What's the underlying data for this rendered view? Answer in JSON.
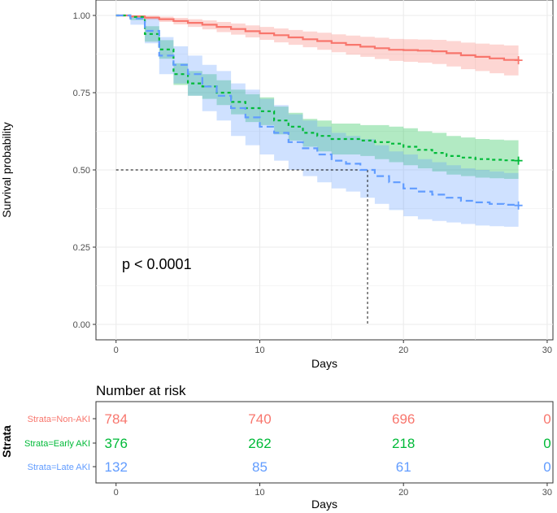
{
  "colors": {
    "non_aki": "#F8766D",
    "early_aki": "#00BA38",
    "late_aki": "#619CFF",
    "grid": "#EBEBEB",
    "axis_text": "#4D4D4D",
    "text": "#000000"
  },
  "chart_data": [
    {
      "type": "line",
      "subtype": "kaplan-meier survival curve",
      "xlabel": "Days",
      "ylabel": "Survival probability",
      "xlim": [
        -1.4,
        30.4
      ],
      "ylim": [
        -0.05,
        1.05
      ],
      "x_ticks": [
        0,
        10,
        20,
        30
      ],
      "x_tick_labels": [
        "0",
        "10",
        "20",
        "30"
      ],
      "y_ticks": [
        0.0,
        0.25,
        0.5,
        0.75,
        1.0
      ],
      "y_tick_labels": [
        "0.00",
        "0.25",
        "0.50",
        "0.75",
        "1.00"
      ],
      "grid": true,
      "annotation": "p < 0.0001",
      "median_line": {
        "x": 17.5,
        "y": 0.5
      },
      "series": [
        {
          "name": "Strata=Non-AKI",
          "color_key": "non_aki",
          "dash": "solid",
          "steps": [
            [
              0,
              1.0
            ],
            [
              1,
              0.997
            ],
            [
              2,
              0.993
            ],
            [
              3,
              0.988
            ],
            [
              4,
              0.982
            ],
            [
              5,
              0.976
            ],
            [
              6,
              0.97
            ],
            [
              7,
              0.963
            ],
            [
              8,
              0.956
            ],
            [
              9,
              0.949
            ],
            [
              10,
              0.942
            ],
            [
              11,
              0.936
            ],
            [
              12,
              0.929
            ],
            [
              13,
              0.923
            ],
            [
              14,
              0.917
            ],
            [
              15,
              0.911
            ],
            [
              16,
              0.905
            ],
            [
              17,
              0.899
            ],
            [
              18,
              0.894
            ],
            [
              19,
              0.889
            ],
            [
              20,
              0.888
            ],
            [
              21,
              0.886
            ],
            [
              22,
              0.884
            ],
            [
              23,
              0.878
            ],
            [
              24,
              0.871
            ],
            [
              25,
              0.866
            ],
            [
              26,
              0.861
            ],
            [
              27,
              0.856
            ],
            [
              28,
              0.855
            ]
          ],
          "ci_lower": [
            [
              0,
              1.0
            ],
            [
              1,
              0.993
            ],
            [
              2,
              0.986
            ],
            [
              3,
              0.979
            ],
            [
              4,
              0.971
            ],
            [
              5,
              0.963
            ],
            [
              6,
              0.955
            ],
            [
              7,
              0.946
            ],
            [
              8,
              0.938
            ],
            [
              9,
              0.929
            ],
            [
              10,
              0.921
            ],
            [
              11,
              0.913
            ],
            [
              12,
              0.905
            ],
            [
              13,
              0.897
            ],
            [
              14,
              0.889
            ],
            [
              15,
              0.881
            ],
            [
              16,
              0.873
            ],
            [
              17,
              0.866
            ],
            [
              18,
              0.859
            ],
            [
              19,
              0.853
            ],
            [
              20,
              0.85
            ],
            [
              21,
              0.847
            ],
            [
              22,
              0.843
            ],
            [
              23,
              0.835
            ],
            [
              24,
              0.826
            ],
            [
              25,
              0.82
            ],
            [
              26,
              0.813
            ],
            [
              27,
              0.806
            ],
            [
              28,
              0.804
            ]
          ],
          "ci_upper": [
            [
              0,
              1.0
            ],
            [
              1,
              1.0
            ],
            [
              2,
              0.999
            ],
            [
              3,
              0.996
            ],
            [
              4,
              0.992
            ],
            [
              5,
              0.988
            ],
            [
              6,
              0.984
            ],
            [
              7,
              0.979
            ],
            [
              8,
              0.974
            ],
            [
              9,
              0.968
            ],
            [
              10,
              0.963
            ],
            [
              11,
              0.958
            ],
            [
              12,
              0.953
            ],
            [
              13,
              0.948
            ],
            [
              14,
              0.944
            ],
            [
              15,
              0.939
            ],
            [
              16,
              0.935
            ],
            [
              17,
              0.931
            ],
            [
              18,
              0.928
            ],
            [
              19,
              0.924
            ],
            [
              20,
              0.923
            ],
            [
              21,
              0.922
            ],
            [
              22,
              0.921
            ],
            [
              23,
              0.917
            ],
            [
              24,
              0.912
            ],
            [
              25,
              0.909
            ],
            [
              26,
              0.906
            ],
            [
              27,
              0.903
            ],
            [
              28,
              0.902
            ]
          ],
          "end": [
            28,
            0.855
          ]
        },
        {
          "name": "Strata=Early AKI",
          "color_key": "early_aki",
          "dash": "4,4",
          "steps": [
            [
              0,
              1.0
            ],
            [
              1,
              0.995
            ],
            [
              2,
              0.94
            ],
            [
              3,
              0.89
            ],
            [
              4,
              0.81
            ],
            [
              5,
              0.78
            ],
            [
              6,
              0.77
            ],
            [
              7,
              0.75
            ],
            [
              8,
              0.72
            ],
            [
              9,
              0.7
            ],
            [
              10,
              0.69
            ],
            [
              11,
              0.66
            ],
            [
              12,
              0.64
            ],
            [
              13,
              0.62
            ],
            [
              14,
              0.61
            ],
            [
              15,
              0.6
            ],
            [
              16,
              0.6
            ],
            [
              17,
              0.595
            ],
            [
              18,
              0.59
            ],
            [
              19,
              0.585
            ],
            [
              20,
              0.575
            ],
            [
              21,
              0.565
            ],
            [
              22,
              0.555
            ],
            [
              23,
              0.545
            ],
            [
              24,
              0.54
            ],
            [
              25,
              0.535
            ],
            [
              26,
              0.533
            ],
            [
              27,
              0.531
            ],
            [
              28,
              0.53
            ]
          ],
          "ci_lower": [
            [
              0,
              1.0
            ],
            [
              1,
              0.985
            ],
            [
              2,
              0.915
            ],
            [
              3,
              0.86
            ],
            [
              4,
              0.775
            ],
            [
              5,
              0.74
            ],
            [
              6,
              0.73
            ],
            [
              7,
              0.71
            ],
            [
              8,
              0.68
            ],
            [
              9,
              0.655
            ],
            [
              10,
              0.645
            ],
            [
              11,
              0.615
            ],
            [
              12,
              0.595
            ],
            [
              13,
              0.575
            ],
            [
              14,
              0.56
            ],
            [
              15,
              0.55
            ],
            [
              16,
              0.55
            ],
            [
              17,
              0.545
            ],
            [
              18,
              0.535
            ],
            [
              19,
              0.525
            ],
            [
              20,
              0.515
            ],
            [
              21,
              0.505
            ],
            [
              22,
              0.495
            ],
            [
              23,
              0.485
            ],
            [
              24,
              0.48
            ],
            [
              25,
              0.475
            ],
            [
              26,
              0.473
            ],
            [
              27,
              0.471
            ],
            [
              28,
              0.47
            ]
          ],
          "ci_upper": [
            [
              0,
              1.0
            ],
            [
              1,
              1.0
            ],
            [
              2,
              0.965
            ],
            [
              3,
              0.92
            ],
            [
              4,
              0.845
            ],
            [
              5,
              0.82
            ],
            [
              6,
              0.81
            ],
            [
              7,
              0.79
            ],
            [
              8,
              0.76
            ],
            [
              9,
              0.745
            ],
            [
              10,
              0.735
            ],
            [
              11,
              0.705
            ],
            [
              12,
              0.685
            ],
            [
              13,
              0.665
            ],
            [
              14,
              0.66
            ],
            [
              15,
              0.65
            ],
            [
              16,
              0.65
            ],
            [
              17,
              0.645
            ],
            [
              18,
              0.645
            ],
            [
              19,
              0.64
            ],
            [
              20,
              0.635
            ],
            [
              21,
              0.625
            ],
            [
              22,
              0.62
            ],
            [
              23,
              0.61
            ],
            [
              24,
              0.605
            ],
            [
              25,
              0.6
            ],
            [
              26,
              0.598
            ],
            [
              27,
              0.596
            ],
            [
              28,
              0.595
            ]
          ],
          "end": [
            28,
            0.53
          ]
        },
        {
          "name": "Strata=Late AKI",
          "color_key": "late_aki",
          "dash": "9,5",
          "steps": [
            [
              0,
              1.0
            ],
            [
              1,
              0.99
            ],
            [
              2,
              0.95
            ],
            [
              3,
              0.87
            ],
            [
              4,
              0.84
            ],
            [
              5,
              0.81
            ],
            [
              6,
              0.77
            ],
            [
              7,
              0.74
            ],
            [
              8,
              0.7
            ],
            [
              9,
              0.67
            ],
            [
              10,
              0.64
            ],
            [
              11,
              0.62
            ],
            [
              12,
              0.59
            ],
            [
              13,
              0.57
            ],
            [
              14,
              0.55
            ],
            [
              15,
              0.53
            ],
            [
              16,
              0.52
            ],
            [
              17,
              0.5
            ],
            [
              18,
              0.48
            ],
            [
              19,
              0.46
            ],
            [
              20,
              0.44
            ],
            [
              21,
              0.43
            ],
            [
              22,
              0.42
            ],
            [
              23,
              0.41
            ],
            [
              24,
              0.4
            ],
            [
              25,
              0.395
            ],
            [
              26,
              0.39
            ],
            [
              27,
              0.387
            ],
            [
              28,
              0.385
            ]
          ],
          "ci_lower": [
            [
              0,
              1.0
            ],
            [
              1,
              0.97
            ],
            [
              2,
              0.91
            ],
            [
              3,
              0.81
            ],
            [
              4,
              0.78
            ],
            [
              5,
              0.74
            ],
            [
              6,
              0.69
            ],
            [
              7,
              0.66
            ],
            [
              8,
              0.61
            ],
            [
              9,
              0.58
            ],
            [
              10,
              0.55
            ],
            [
              11,
              0.53
            ],
            [
              12,
              0.5
            ],
            [
              13,
              0.48
            ],
            [
              14,
              0.46
            ],
            [
              15,
              0.44
            ],
            [
              16,
              0.43
            ],
            [
              17,
              0.41
            ],
            [
              18,
              0.39
            ],
            [
              19,
              0.37
            ],
            [
              20,
              0.35
            ],
            [
              21,
              0.34
            ],
            [
              22,
              0.335
            ],
            [
              23,
              0.33
            ],
            [
              24,
              0.325
            ],
            [
              25,
              0.32
            ],
            [
              26,
              0.318
            ],
            [
              27,
              0.316
            ],
            [
              28,
              0.315
            ]
          ],
          "ci_upper": [
            [
              0,
              1.0
            ],
            [
              1,
              1.0
            ],
            [
              2,
              0.99
            ],
            [
              3,
              0.93
            ],
            [
              4,
              0.9
            ],
            [
              5,
              0.87
            ],
            [
              6,
              0.84
            ],
            [
              7,
              0.82
            ],
            [
              8,
              0.78
            ],
            [
              9,
              0.76
            ],
            [
              10,
              0.73
            ],
            [
              11,
              0.71
            ],
            [
              12,
              0.68
            ],
            [
              13,
              0.66
            ],
            [
              14,
              0.64
            ],
            [
              15,
              0.62
            ],
            [
              16,
              0.61
            ],
            [
              17,
              0.6
            ],
            [
              18,
              0.58
            ],
            [
              19,
              0.56
            ],
            [
              20,
              0.55
            ],
            [
              21,
              0.535
            ],
            [
              22,
              0.525
            ],
            [
              23,
              0.515
            ],
            [
              24,
              0.505
            ],
            [
              25,
              0.5
            ],
            [
              26,
              0.495
            ],
            [
              27,
              0.49
            ],
            [
              28,
              0.485
            ]
          ],
          "end": [
            28,
            0.385
          ]
        }
      ]
    },
    {
      "type": "table",
      "title": "Number at risk",
      "xlabel": "Days",
      "ylabel": "Strata",
      "x_ticks": [
        0,
        10,
        20,
        30
      ],
      "x_tick_labels": [
        "0",
        "10",
        "20",
        "30"
      ],
      "rows": [
        {
          "name": "Strata=Non-AKI",
          "color_key": "non_aki",
          "values": [
            "784",
            "740",
            "696",
            "0"
          ]
        },
        {
          "name": "Strata=Early AKI",
          "color_key": "early_aki",
          "values": [
            "376",
            "262",
            "218",
            "0"
          ]
        },
        {
          "name": "Strata=Late AKI",
          "color_key": "late_aki",
          "values": [
            "132",
            "85",
            "61",
            "0"
          ]
        }
      ]
    }
  ]
}
